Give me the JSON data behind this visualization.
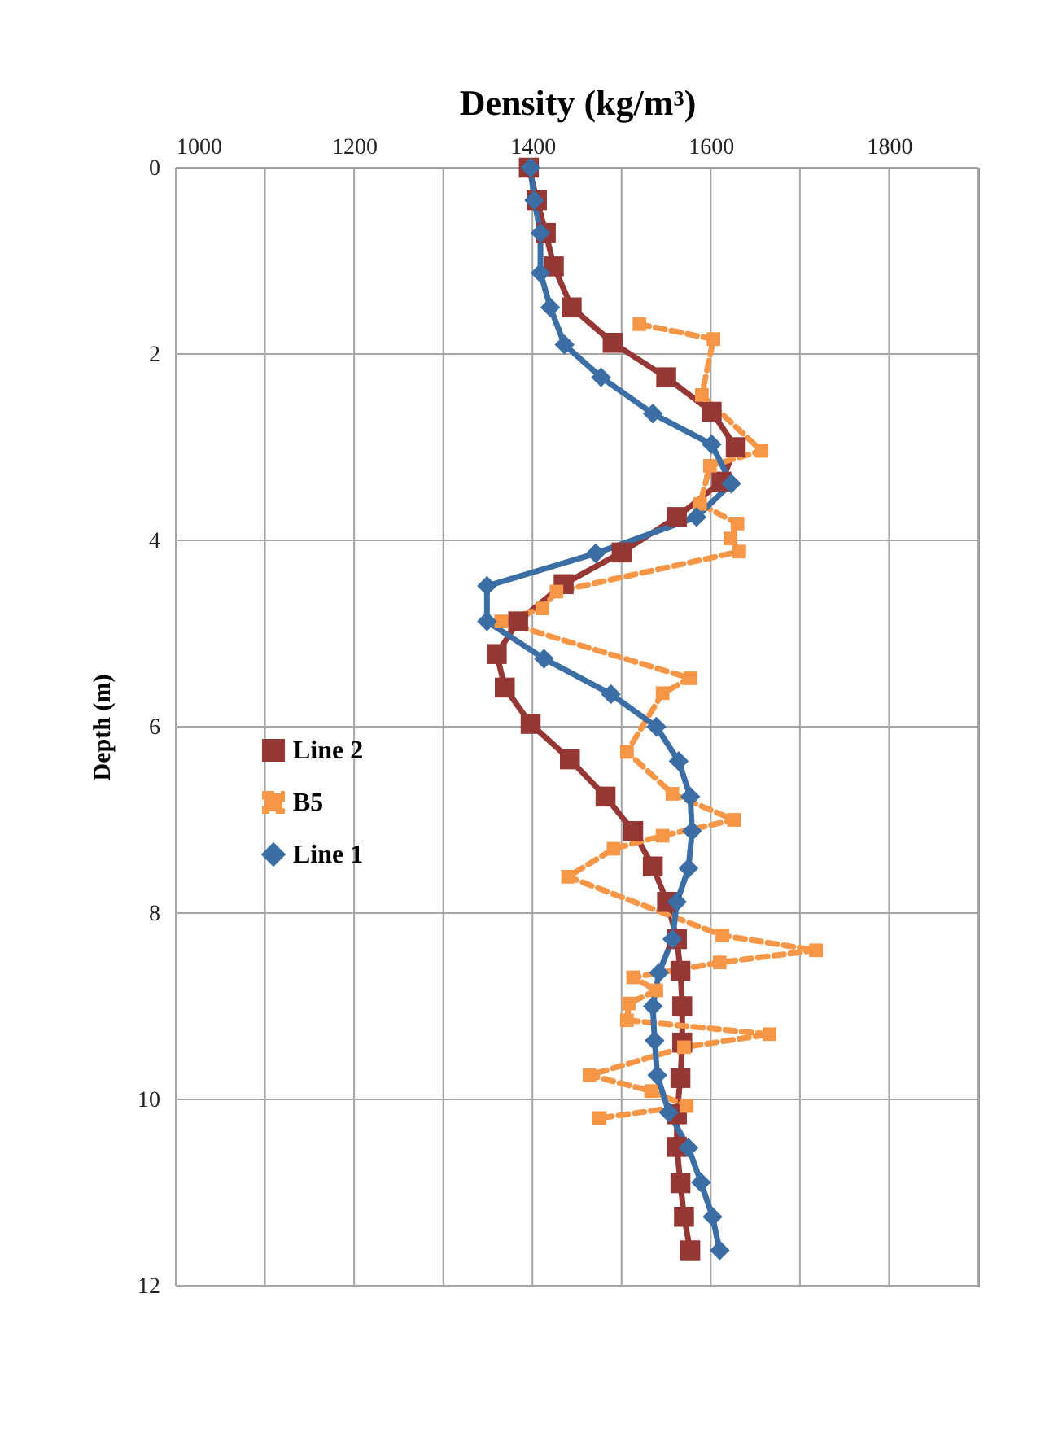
{
  "chart_data": {
    "type": "line",
    "xlabel": "Density (kg/m³)",
    "ylabel": "Depth (m)",
    "xlim": [
      1000,
      1900
    ],
    "xticks": [
      1000,
      1200,
      1400,
      1600,
      1800
    ],
    "ylim": [
      12,
      0
    ],
    "yticks": [
      0,
      2,
      4,
      6,
      8,
      10,
      12
    ],
    "grid": true,
    "legend": "left",
    "series": [
      {
        "name": "Line 2",
        "color": "#953735",
        "marker": "square",
        "line_style": "solid",
        "x": [
          1396,
          1405,
          1415,
          1424,
          1444,
          1490,
          1550,
          1601,
          1628,
          1612,
          1562,
          1500,
          1435,
          1384,
          1360,
          1369,
          1398,
          1442,
          1482,
          1513,
          1535,
          1551,
          1562,
          1566,
          1568,
          1568,
          1566,
          1562,
          1562,
          1566,
          1570,
          1577
        ],
        "values": [
          0,
          0.35,
          0.7,
          1.06,
          1.5,
          1.88,
          2.25,
          2.62,
          3.0,
          3.37,
          3.75,
          4.13,
          4.47,
          4.87,
          5.22,
          5.58,
          5.97,
          6.35,
          6.75,
          7.12,
          7.5,
          7.88,
          8.28,
          8.62,
          9.0,
          9.39,
          9.77,
          10.16,
          10.51,
          10.9,
          11.26,
          11.62
        ]
      },
      {
        "name": "B5",
        "color": "#f79646",
        "marker": "square",
        "line_style": "dashed",
        "x": [
          1520,
          1603,
          1590,
          1657,
          1599,
          1588,
          1630,
          1622,
          1632,
          1427,
          1411,
          1365,
          1577,
          1546,
          1506,
          1557,
          1626,
          1546,
          1491,
          1440,
          1613,
          1718,
          1610,
          1513,
          1539,
          1508,
          1506,
          1666,
          1570,
          1464,
          1533,
          1573,
          1475
        ],
        "values": [
          1.68,
          1.84,
          2.44,
          3.04,
          3.2,
          3.61,
          3.82,
          3.98,
          4.12,
          4.55,
          4.73,
          4.87,
          5.48,
          5.64,
          6.27,
          6.72,
          7.0,
          7.17,
          7.31,
          7.61,
          8.24,
          8.4,
          8.53,
          8.69,
          8.83,
          8.97,
          9.15,
          9.3,
          9.44,
          9.74,
          9.91,
          10.07,
          10.2
        ]
      },
      {
        "name": "Line 1",
        "color": "#3a6ea5",
        "marker": "diamond",
        "line_style": "solid",
        "x": [
          1398,
          1402,
          1409,
          1409,
          1420,
          1436,
          1477,
          1535,
          1601,
          1623,
          1584,
          1471,
          1349,
          1349,
          1413,
          1488,
          1539,
          1564,
          1577,
          1579,
          1575,
          1562,
          1557,
          1542,
          1535,
          1537,
          1540,
          1553,
          1575,
          1589,
          1602,
          1610
        ],
        "values": [
          0,
          0.35,
          0.7,
          1.13,
          1.5,
          1.9,
          2.25,
          2.64,
          2.97,
          3.39,
          3.75,
          4.14,
          4.49,
          4.87,
          5.27,
          5.65,
          6.0,
          6.37,
          6.75,
          7.12,
          7.52,
          7.88,
          8.28,
          8.64,
          9.0,
          9.37,
          9.74,
          10.14,
          10.52,
          10.89,
          11.26,
          11.62
        ]
      }
    ]
  }
}
